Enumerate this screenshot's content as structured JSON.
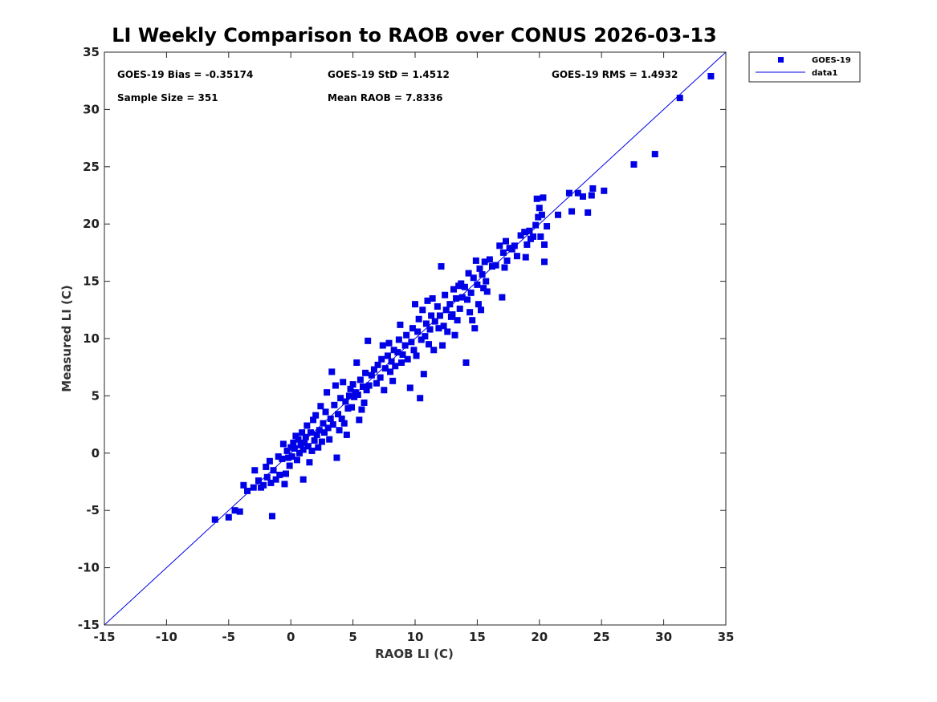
{
  "chart_data": {
    "type": "scatter",
    "title": "LI Weekly Comparison to RAOB over CONUS 2026-03-13",
    "xlabel": "RAOB LI (C)",
    "ylabel": "Measured LI (C)",
    "xlim": [
      -15,
      35
    ],
    "ylim": [
      -15,
      35
    ],
    "xticks": [
      "-15",
      "-10",
      "-5",
      "0",
      "5",
      "10",
      "15",
      "20",
      "25",
      "30",
      "35"
    ],
    "yticks": [
      "-15",
      "-10",
      "-5",
      "0",
      "5",
      "10",
      "15",
      "20",
      "25",
      "30",
      "35"
    ],
    "legend_position": "outside-top-right",
    "stats": {
      "bias": "GOES-19 Bias = -0.35174",
      "std": "GOES-19 StD = 1.4512",
      "rms": "GOES-19 RMS = 1.4932",
      "sample_size": "Sample Size = 351",
      "mean_raob": "Mean RAOB = 7.8336"
    },
    "series": [
      {
        "name": "GOES-19",
        "kind": "scatter",
        "color": "#0000e6",
        "marker": "square",
        "points": [
          [
            -6.1,
            -5.8
          ],
          [
            -5.0,
            -5.6
          ],
          [
            -4.5,
            -5.0
          ],
          [
            -4.1,
            -5.1
          ],
          [
            -3.8,
            -2.8
          ],
          [
            -3.5,
            -3.3
          ],
          [
            -3.0,
            -3.0
          ],
          [
            -2.9,
            -1.5
          ],
          [
            -2.6,
            -2.4
          ],
          [
            -2.4,
            -3.0
          ],
          [
            -2.2,
            -2.8
          ],
          [
            -2.0,
            -1.2
          ],
          [
            -1.9,
            -2.1
          ],
          [
            -1.7,
            -0.7
          ],
          [
            -1.6,
            -2.6
          ],
          [
            -1.5,
            -5.5
          ],
          [
            -1.4,
            -1.5
          ],
          [
            -1.2,
            -2.3
          ],
          [
            -1.0,
            -0.3
          ],
          [
            -0.9,
            -1.9
          ],
          [
            -0.7,
            -0.5
          ],
          [
            -0.6,
            0.8
          ],
          [
            -0.5,
            -2.7
          ],
          [
            -0.4,
            -1.8
          ],
          [
            -0.3,
            0.2
          ],
          [
            -0.2,
            -0.4
          ],
          [
            -0.1,
            -1.1
          ],
          [
            0.0,
            0.5
          ],
          [
            0.1,
            -0.3
          ],
          [
            0.2,
            0.9
          ],
          [
            0.3,
            0.4
          ],
          [
            0.4,
            1.5
          ],
          [
            0.5,
            -0.6
          ],
          [
            0.6,
            1.2
          ],
          [
            0.7,
            0.0
          ],
          [
            0.8,
            0.7
          ],
          [
            0.9,
            1.8
          ],
          [
            1.0,
            -2.3
          ],
          [
            1.0,
            0.3
          ],
          [
            1.1,
            0.9
          ],
          [
            1.2,
            1.4
          ],
          [
            1.3,
            2.4
          ],
          [
            1.4,
            0.6
          ],
          [
            1.5,
            -0.8
          ],
          [
            1.6,
            1.8
          ],
          [
            1.7,
            0.2
          ],
          [
            1.8,
            2.9
          ],
          [
            1.9,
            1.1
          ],
          [
            2.0,
            3.3
          ],
          [
            2.1,
            1.6
          ],
          [
            2.2,
            0.5
          ],
          [
            2.3,
            2.0
          ],
          [
            2.4,
            4.1
          ],
          [
            2.5,
            1.0
          ],
          [
            2.6,
            2.6
          ],
          [
            2.7,
            1.8
          ],
          [
            2.8,
            3.6
          ],
          [
            2.9,
            5.3
          ],
          [
            3.0,
            2.2
          ],
          [
            3.1,
            1.2
          ],
          [
            3.2,
            3.0
          ],
          [
            3.3,
            7.1
          ],
          [
            3.4,
            2.5
          ],
          [
            3.5,
            4.2
          ],
          [
            3.6,
            5.9
          ],
          [
            3.7,
            -0.4
          ],
          [
            3.8,
            3.4
          ],
          [
            3.9,
            2.0
          ],
          [
            4.0,
            4.8
          ],
          [
            4.1,
            3.0
          ],
          [
            4.2,
            6.2
          ],
          [
            4.3,
            2.6
          ],
          [
            4.4,
            4.5
          ],
          [
            4.5,
            1.6
          ],
          [
            4.6,
            3.9
          ],
          [
            4.7,
            5.0
          ],
          [
            4.8,
            5.6
          ],
          [
            4.9,
            4.0
          ],
          [
            5.0,
            6.0
          ],
          [
            5.1,
            4.9
          ],
          [
            5.2,
            5.3
          ],
          [
            5.3,
            7.9
          ],
          [
            5.4,
            5.1
          ],
          [
            5.5,
            2.9
          ],
          [
            5.6,
            6.4
          ],
          [
            5.7,
            3.8
          ],
          [
            5.8,
            5.8
          ],
          [
            5.9,
            4.4
          ],
          [
            6.0,
            7.0
          ],
          [
            6.1,
            5.5
          ],
          [
            6.2,
            9.8
          ],
          [
            6.3,
            5.9
          ],
          [
            6.5,
            6.8
          ],
          [
            6.7,
            7.3
          ],
          [
            6.9,
            6.1
          ],
          [
            7.0,
            7.7
          ],
          [
            7.2,
            6.6
          ],
          [
            7.3,
            8.2
          ],
          [
            7.4,
            9.4
          ],
          [
            7.5,
            5.5
          ],
          [
            7.6,
            7.4
          ],
          [
            7.8,
            8.5
          ],
          [
            7.9,
            9.6
          ],
          [
            8.0,
            7.1
          ],
          [
            8.1,
            8.0
          ],
          [
            8.2,
            6.3
          ],
          [
            8.3,
            9.0
          ],
          [
            8.4,
            7.6
          ],
          [
            8.6,
            8.8
          ],
          [
            8.7,
            9.9
          ],
          [
            8.8,
            11.2
          ],
          [
            8.9,
            7.9
          ],
          [
            9.0,
            8.6
          ],
          [
            9.2,
            9.4
          ],
          [
            9.3,
            10.3
          ],
          [
            9.4,
            8.2
          ],
          [
            9.6,
            5.7
          ],
          [
            9.7,
            9.7
          ],
          [
            9.8,
            10.9
          ],
          [
            9.9,
            9.0
          ],
          [
            10.0,
            13.0
          ],
          [
            10.1,
            8.5
          ],
          [
            10.2,
            10.6
          ],
          [
            10.3,
            11.7
          ],
          [
            10.4,
            4.8
          ],
          [
            10.5,
            9.9
          ],
          [
            10.6,
            12.5
          ],
          [
            10.7,
            6.9
          ],
          [
            10.8,
            10.2
          ],
          [
            10.9,
            11.3
          ],
          [
            11.0,
            13.3
          ],
          [
            11.1,
            9.5
          ],
          [
            11.2,
            10.8
          ],
          [
            11.3,
            12.0
          ],
          [
            11.4,
            13.5
          ],
          [
            11.5,
            9.0
          ],
          [
            11.6,
            11.5
          ],
          [
            11.8,
            12.8
          ],
          [
            11.9,
            10.9
          ],
          [
            12.0,
            12.0
          ],
          [
            12.1,
            16.3
          ],
          [
            12.2,
            9.4
          ],
          [
            12.3,
            11.1
          ],
          [
            12.4,
            13.8
          ],
          [
            12.5,
            12.5
          ],
          [
            12.6,
            10.6
          ],
          [
            12.8,
            13.0
          ],
          [
            12.9,
            11.9
          ],
          [
            13.0,
            12.1
          ],
          [
            13.1,
            14.3
          ],
          [
            13.2,
            10.3
          ],
          [
            13.3,
            13.5
          ],
          [
            13.4,
            11.6
          ],
          [
            13.5,
            14.6
          ],
          [
            13.6,
            12.6
          ],
          [
            13.7,
            14.8
          ],
          [
            13.8,
            13.6
          ],
          [
            14.0,
            14.5
          ],
          [
            14.1,
            7.9
          ],
          [
            14.2,
            13.4
          ],
          [
            14.3,
            15.7
          ],
          [
            14.4,
            12.3
          ],
          [
            14.5,
            14.0
          ],
          [
            14.6,
            11.6
          ],
          [
            14.7,
            15.3
          ],
          [
            14.8,
            10.9
          ],
          [
            14.9,
            16.8
          ],
          [
            15.0,
            14.7
          ],
          [
            15.1,
            13.0
          ],
          [
            15.2,
            16.1
          ],
          [
            15.3,
            12.5
          ],
          [
            15.4,
            15.6
          ],
          [
            15.5,
            14.4
          ],
          [
            15.6,
            16.7
          ],
          [
            15.7,
            15.0
          ],
          [
            15.8,
            14.1
          ],
          [
            16.0,
            16.9
          ],
          [
            16.2,
            16.3
          ],
          [
            16.5,
            16.4
          ],
          [
            16.8,
            18.1
          ],
          [
            17.0,
            13.6
          ],
          [
            17.1,
            17.5
          ],
          [
            17.2,
            16.2
          ],
          [
            17.3,
            18.5
          ],
          [
            17.4,
            16.8
          ],
          [
            17.6,
            17.9
          ],
          [
            17.8,
            17.8
          ],
          [
            18.0,
            18.1
          ],
          [
            18.2,
            17.2
          ],
          [
            18.5,
            19.0
          ],
          [
            18.8,
            19.3
          ],
          [
            18.9,
            17.1
          ],
          [
            19.0,
            18.2
          ],
          [
            19.2,
            19.4
          ],
          [
            19.3,
            18.7
          ],
          [
            19.5,
            18.9
          ],
          [
            19.7,
            19.9
          ],
          [
            19.8,
            22.2
          ],
          [
            19.9,
            20.6
          ],
          [
            20.0,
            21.4
          ],
          [
            20.1,
            18.9
          ],
          [
            20.2,
            20.8
          ],
          [
            20.3,
            22.3
          ],
          [
            20.4,
            16.7
          ],
          [
            20.4,
            18.2
          ],
          [
            20.6,
            19.8
          ],
          [
            21.5,
            20.8
          ],
          [
            22.4,
            22.7
          ],
          [
            22.6,
            21.1
          ],
          [
            23.1,
            22.7
          ],
          [
            23.5,
            22.4
          ],
          [
            23.9,
            21.0
          ],
          [
            24.2,
            22.5
          ],
          [
            24.3,
            23.1
          ],
          [
            25.2,
            22.9
          ],
          [
            27.6,
            25.2
          ],
          [
            29.3,
            26.1
          ],
          [
            31.3,
            31.0
          ],
          [
            33.8,
            32.9
          ]
        ]
      },
      {
        "name": "data1",
        "kind": "line",
        "color": "#0000e6",
        "points": [
          [
            -15,
            -15
          ],
          [
            35,
            35
          ]
        ]
      }
    ]
  }
}
